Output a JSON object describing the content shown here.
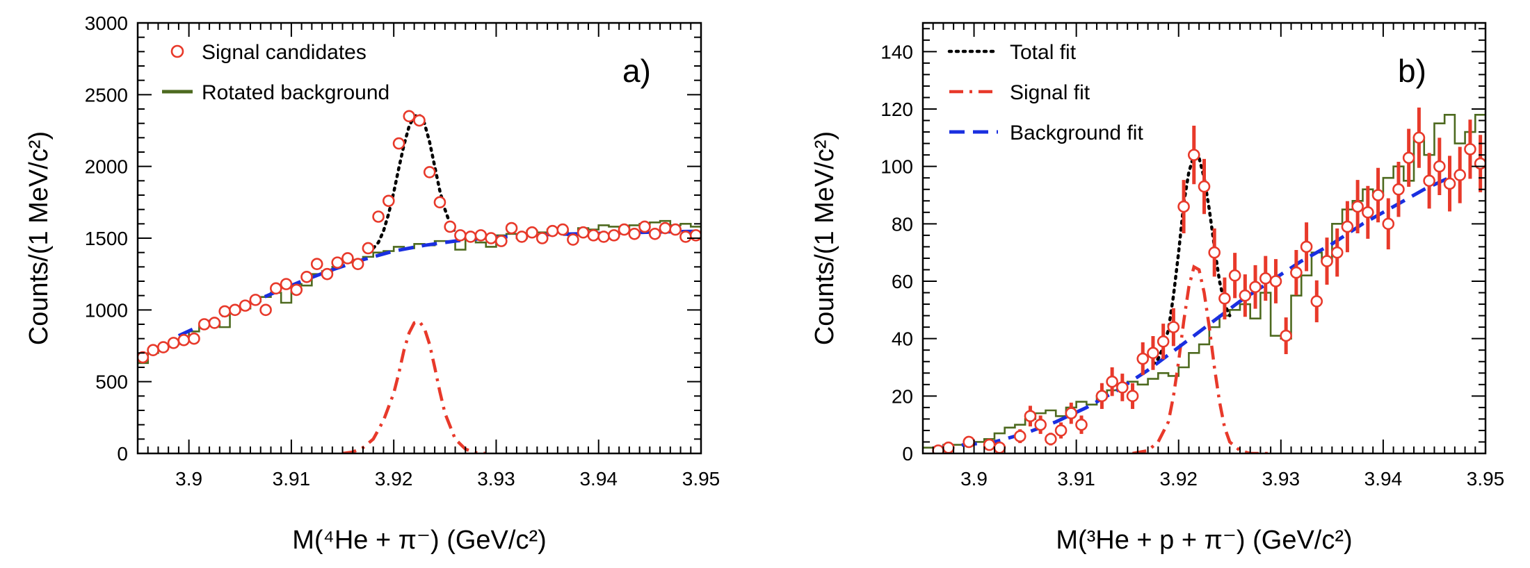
{
  "chart_data": [
    {
      "type": "line",
      "panel_label": "a)",
      "xlabel": "M(⁴He + π⁻) (GeV/c²)",
      "ylabel": "Counts/(1 MeV/c²)",
      "xlim": [
        3.895,
        3.95
      ],
      "ylim": [
        0,
        3000
      ],
      "xticks": [
        3.9,
        3.91,
        3.92,
        3.93,
        3.94,
        3.95
      ],
      "yticks": [
        0,
        500,
        1000,
        1500,
        2000,
        2500,
        3000
      ],
      "grid": false,
      "legend_position": "top-left",
      "legend": [
        {
          "label": "Signal candidates",
          "marker": "circle",
          "color": "#e8392a"
        },
        {
          "label": "Rotated background",
          "marker": "line",
          "color": "#4d6a1f"
        }
      ],
      "series": [
        {
          "name": "Signal candidates",
          "style": "markers",
          "color": "#e8392a",
          "x": [
            3.8955,
            3.8965,
            3.8975,
            3.8985,
            3.8995,
            3.9005,
            3.9015,
            3.9025,
            3.9035,
            3.9045,
            3.9055,
            3.9065,
            3.9075,
            3.9085,
            3.9095,
            3.9105,
            3.9115,
            3.9125,
            3.9135,
            3.9145,
            3.9155,
            3.9165,
            3.9175,
            3.9185,
            3.9195,
            3.9205,
            3.9215,
            3.9225,
            3.9235,
            3.9245,
            3.9255,
            3.9265,
            3.9275,
            3.9285,
            3.9295,
            3.9305,
            3.9315,
            3.9325,
            3.9335,
            3.9345,
            3.9355,
            3.9365,
            3.9375,
            3.9385,
            3.9395,
            3.9405,
            3.9415,
            3.9425,
            3.9435,
            3.9445,
            3.9455,
            3.9465,
            3.9475,
            3.9485,
            3.9495
          ],
          "y": [
            670,
            720,
            740,
            770,
            790,
            800,
            900,
            910,
            990,
            1000,
            1030,
            1070,
            1000,
            1150,
            1180,
            1140,
            1230,
            1320,
            1250,
            1330,
            1360,
            1320,
            1430,
            1650,
            1760,
            2160,
            2350,
            2320,
            1960,
            1750,
            1580,
            1520,
            1510,
            1520,
            1500,
            1480,
            1570,
            1510,
            1540,
            1500,
            1550,
            1560,
            1490,
            1540,
            1520,
            1510,
            1520,
            1560,
            1530,
            1580,
            1530,
            1570,
            1560,
            1510,
            1520
          ]
        },
        {
          "name": "Rotated background",
          "style": "step",
          "color": "#4d6a1f",
          "x": [
            3.895,
            3.896,
            3.897,
            3.898,
            3.899,
            3.9,
            3.901,
            3.902,
            3.903,
            3.904,
            3.905,
            3.906,
            3.907,
            3.908,
            3.909,
            3.91,
            3.911,
            3.912,
            3.913,
            3.914,
            3.915,
            3.916,
            3.917,
            3.918,
            3.919,
            3.92,
            3.921,
            3.922,
            3.923,
            3.924,
            3.925,
            3.926,
            3.927,
            3.928,
            3.929,
            3.93,
            3.931,
            3.932,
            3.933,
            3.934,
            3.935,
            3.936,
            3.937,
            3.938,
            3.939,
            3.94,
            3.941,
            3.942,
            3.943,
            3.944,
            3.945,
            3.946,
            3.947,
            3.948,
            3.949,
            3.95
          ],
          "y": [
            630,
            700,
            740,
            760,
            790,
            850,
            900,
            920,
            880,
            990,
            1010,
            1060,
            1090,
            1120,
            1050,
            1180,
            1170,
            1250,
            1270,
            1300,
            1330,
            1350,
            1370,
            1400,
            1410,
            1440,
            1430,
            1460,
            1450,
            1480,
            1480,
            1420,
            1490,
            1470,
            1440,
            1520,
            1530,
            1500,
            1550,
            1540,
            1560,
            1550,
            1520,
            1570,
            1560,
            1590,
            1580,
            1560,
            1590,
            1600,
            1610,
            1620,
            1590,
            1600,
            1580,
            1600
          ]
        },
        {
          "name": "Total fit",
          "style": "dotted",
          "color": "#000000",
          "x": [
            3.918,
            3.9185,
            3.919,
            3.9195,
            3.92,
            3.9205,
            3.921,
            3.9215,
            3.922,
            3.9225,
            3.923,
            3.9235,
            3.924,
            3.9245,
            3.925,
            3.9255,
            3.926,
            3.9265,
            3.927,
            3.9275,
            3.928
          ],
          "y": [
            1430,
            1470,
            1550,
            1670,
            1820,
            1990,
            2150,
            2280,
            2350,
            2360,
            2300,
            2170,
            2000,
            1830,
            1700,
            1600,
            1540,
            1510,
            1500,
            1495,
            1495
          ]
        },
        {
          "name": "Background fit",
          "style": "dashed",
          "color": "#1a2fe0",
          "x": [
            3.899,
            3.902,
            3.905,
            3.908,
            3.911,
            3.914,
            3.917,
            3.92,
            3.923,
            3.926,
            3.929,
            3.932,
            3.935,
            3.938,
            3.941,
            3.944,
            3.947,
            3.95
          ],
          "y": [
            820,
            920,
            1020,
            1110,
            1200,
            1280,
            1350,
            1410,
            1450,
            1480,
            1500,
            1515,
            1525,
            1530,
            1535,
            1540,
            1545,
            1548
          ]
        },
        {
          "name": "Signal fit",
          "style": "dash-dot",
          "color": "#e8392a",
          "x": [
            3.915,
            3.916,
            3.917,
            3.918,
            3.919,
            3.92,
            3.9205,
            3.921,
            3.9215,
            3.922,
            3.9225,
            3.923,
            3.9235,
            3.924,
            3.9245,
            3.925,
            3.926,
            3.927,
            3.928,
            3.929
          ],
          "y": [
            0,
            10,
            40,
            100,
            230,
            420,
            560,
            720,
            840,
            910,
            920,
            870,
            760,
            600,
            430,
            280,
            100,
            30,
            5,
            0
          ]
        }
      ]
    },
    {
      "type": "line",
      "panel_label": "b)",
      "xlabel": "M(³He + p + π⁻) (GeV/c²)",
      "ylabel": "Counts/(1 MeV/c²)",
      "xlim": [
        3.895,
        3.95
      ],
      "ylim": [
        0,
        150
      ],
      "xticks": [
        3.9,
        3.91,
        3.92,
        3.93,
        3.94,
        3.95
      ],
      "yticks": [
        0,
        20,
        40,
        60,
        80,
        100,
        120,
        140
      ],
      "grid": false,
      "legend_position": "top-left",
      "legend": [
        {
          "label": "Total fit",
          "marker": "dotted",
          "color": "#000000"
        },
        {
          "label": "Signal fit",
          "marker": "dash-dot",
          "color": "#e8392a"
        },
        {
          "label": "Background fit",
          "marker": "dashed",
          "color": "#1a2fe0"
        }
      ],
      "series": [
        {
          "name": "Signal candidates",
          "style": "markers-errorbars",
          "color": "#e8392a",
          "x": [
            3.8965,
            3.8975,
            3.8995,
            3.9015,
            3.9025,
            3.9045,
            3.9055,
            3.9065,
            3.9075,
            3.9085,
            3.9095,
            3.9105,
            3.9125,
            3.9135,
            3.9145,
            3.9155,
            3.9165,
            3.9175,
            3.9185,
            3.9195,
            3.9205,
            3.9215,
            3.9225,
            3.9235,
            3.9245,
            3.9255,
            3.9265,
            3.9275,
            3.9285,
            3.9295,
            3.9305,
            3.9315,
            3.9325,
            3.9335,
            3.9345,
            3.9355,
            3.9365,
            3.9375,
            3.9385,
            3.9395,
            3.9405,
            3.9415,
            3.9425,
            3.9435,
            3.9445,
            3.9455,
            3.9465,
            3.9475,
            3.9485,
            3.9495
          ],
          "y": [
            1,
            2,
            4,
            3,
            2,
            6,
            13,
            10,
            5,
            8,
            14,
            10,
            20,
            25,
            23,
            20,
            33,
            35,
            39,
            44,
            86,
            104,
            93,
            70,
            54,
            62,
            55,
            58,
            61,
            60,
            41,
            63,
            72,
            53,
            67,
            70,
            79,
            86,
            84,
            90,
            80,
            92,
            103,
            110,
            95,
            100,
            94,
            97,
            106,
            101
          ],
          "yerr": [
            1,
            1.4,
            2,
            1.7,
            1.4,
            2.4,
            3.6,
            3.2,
            2.2,
            2.8,
            3.7,
            3.2,
            4.5,
            5,
            4.8,
            4.5,
            5.7,
            5.9,
            6.2,
            6.6,
            9.3,
            10.2,
            9.6,
            8.4,
            7.3,
            7.9,
            7.4,
            7.6,
            7.8,
            7.7,
            6.4,
            7.9,
            8.5,
            7.3,
            8.2,
            8.4,
            8.9,
            9.3,
            9.2,
            9.5,
            8.9,
            9.6,
            10.1,
            10.5,
            9.7,
            10,
            9.7,
            9.8,
            10.3,
            10
          ]
        },
        {
          "name": "Rotated background",
          "style": "step",
          "color": "#4d6a1f",
          "x": [
            3.895,
            3.896,
            3.897,
            3.898,
            3.899,
            3.9,
            3.901,
            3.902,
            3.903,
            3.904,
            3.905,
            3.906,
            3.907,
            3.908,
            3.909,
            3.91,
            3.911,
            3.912,
            3.913,
            3.914,
            3.915,
            3.916,
            3.917,
            3.918,
            3.919,
            3.92,
            3.921,
            3.922,
            3.923,
            3.924,
            3.925,
            3.926,
            3.927,
            3.928,
            3.929,
            3.93,
            3.931,
            3.932,
            3.933,
            3.934,
            3.935,
            3.936,
            3.937,
            3.938,
            3.939,
            3.94,
            3.941,
            3.942,
            3.943,
            3.944,
            3.945,
            3.946,
            3.947,
            3.948,
            3.949,
            3.95
          ],
          "y": [
            2,
            2,
            3,
            3,
            4,
            4,
            5,
            7,
            9,
            10,
            12,
            14,
            15,
            13,
            16,
            18,
            17,
            20,
            22,
            24,
            25,
            24,
            26,
            28,
            27,
            30,
            35,
            38,
            44,
            48,
            50,
            52,
            47,
            56,
            41,
            40,
            55,
            62,
            70,
            67,
            80,
            85,
            88,
            92,
            90,
            96,
            100,
            95,
            110,
            104,
            115,
            118,
            108,
            112,
            118,
            108
          ]
        },
        {
          "name": "Total fit",
          "style": "dotted",
          "color": "#000000",
          "x": [
            3.9175,
            3.918,
            3.9185,
            3.919,
            3.9195,
            3.92,
            3.9205,
            3.921,
            3.9215,
            3.922,
            3.9225,
            3.923,
            3.9235,
            3.924,
            3.9245,
            3.925
          ],
          "y": [
            31,
            33,
            37,
            43,
            55,
            70,
            87,
            98,
            104,
            103,
            96,
            85,
            72,
            60,
            52,
            48
          ]
        },
        {
          "name": "Background fit",
          "style": "dashed",
          "color": "#1a2fe0",
          "x": [
            3.8965,
            3.899,
            3.902,
            3.905,
            3.908,
            3.911,
            3.914,
            3.917,
            3.92,
            3.923,
            3.926,
            3.929,
            3.932,
            3.935,
            3.938,
            3.941,
            3.944,
            3.947
          ],
          "y": [
            2,
            3,
            4,
            7,
            11,
            16,
            22,
            29,
            37,
            45,
            53,
            60,
            67,
            73,
            80,
            86,
            92,
            97
          ]
        },
        {
          "name": "Signal fit",
          "style": "dash-dot",
          "color": "#e8392a",
          "x": [
            3.9155,
            3.917,
            3.918,
            3.919,
            3.9195,
            3.92,
            3.9205,
            3.921,
            3.9215,
            3.922,
            3.9225,
            3.923,
            3.9235,
            3.924,
            3.9245,
            3.925,
            3.926,
            3.927,
            3.929
          ],
          "y": [
            0,
            1,
            4,
            11,
            20,
            32,
            46,
            58,
            65,
            64,
            56,
            44,
            30,
            18,
            9,
            4,
            1,
            0,
            0
          ]
        }
      ]
    }
  ]
}
